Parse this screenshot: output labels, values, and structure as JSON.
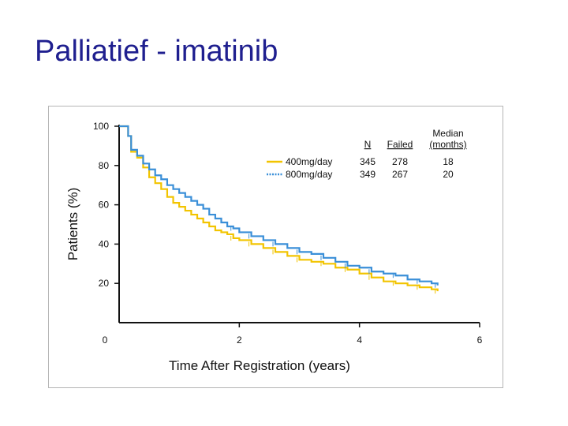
{
  "slide": {
    "title": "Palliatief - imatinib"
  },
  "colors": {
    "title": "#1f1f8f",
    "series_400": "#f2c400",
    "series_800": "#3a8fd8",
    "axis": "#111111"
  },
  "chart_data": {
    "type": "line",
    "subtype": "kaplan-meier",
    "title": "",
    "xlabel": "Time After Registration (years)",
    "ylabel": "Patients (%)",
    "xlim": [
      0,
      6
    ],
    "ylim": [
      0,
      100
    ],
    "x_ticks": [
      0,
      2,
      4,
      6
    ],
    "y_ticks": [
      20,
      40,
      60,
      80,
      100
    ],
    "grid": false,
    "table_headers": {
      "n": "N",
      "failed": "Failed",
      "median": "Median",
      "median_unit": "(months)"
    },
    "series": [
      {
        "name": "400mg/day",
        "n": "345",
        "failed": "278",
        "median": "18",
        "color": "#f2c400",
        "line_style": "solid",
        "x": [
          0,
          0.1,
          0.15,
          0.2,
          0.3,
          0.4,
          0.5,
          0.6,
          0.7,
          0.8,
          0.9,
          1.0,
          1.1,
          1.2,
          1.3,
          1.4,
          1.5,
          1.6,
          1.7,
          1.8,
          1.9,
          2.0,
          2.2,
          2.4,
          2.6,
          2.8,
          3.0,
          3.2,
          3.4,
          3.6,
          3.8,
          4.0,
          4.2,
          4.4,
          4.6,
          4.8,
          5.0,
          5.2,
          5.3
        ],
        "y": [
          100,
          100,
          95,
          87,
          84,
          79,
          74,
          71,
          68,
          64,
          61,
          59,
          57,
          55,
          53,
          51,
          49,
          47,
          46,
          45,
          43,
          42,
          40,
          38,
          36,
          34,
          32,
          31,
          30,
          28,
          27,
          25,
          23,
          21,
          20,
          19,
          18,
          17,
          16
        ]
      },
      {
        "name": "800mg/day",
        "n": "349",
        "failed": "267",
        "median": "20",
        "color": "#3a8fd8",
        "line_style": "dotted",
        "x": [
          0,
          0.1,
          0.15,
          0.2,
          0.3,
          0.4,
          0.5,
          0.6,
          0.7,
          0.8,
          0.9,
          1.0,
          1.1,
          1.2,
          1.3,
          1.4,
          1.5,
          1.6,
          1.7,
          1.8,
          1.9,
          2.0,
          2.2,
          2.4,
          2.6,
          2.8,
          3.0,
          3.2,
          3.4,
          3.6,
          3.8,
          4.0,
          4.2,
          4.4,
          4.6,
          4.8,
          5.0,
          5.2,
          5.3
        ],
        "y": [
          100,
          100,
          95,
          88,
          85,
          81,
          78,
          75,
          73,
          70,
          68,
          66,
          64,
          62,
          60,
          58,
          55,
          53,
          51,
          49,
          48,
          46,
          44,
          42,
          40,
          38,
          36,
          35,
          33,
          31,
          29,
          28,
          26,
          25,
          24,
          22,
          21,
          20,
          19
        ]
      }
    ]
  }
}
